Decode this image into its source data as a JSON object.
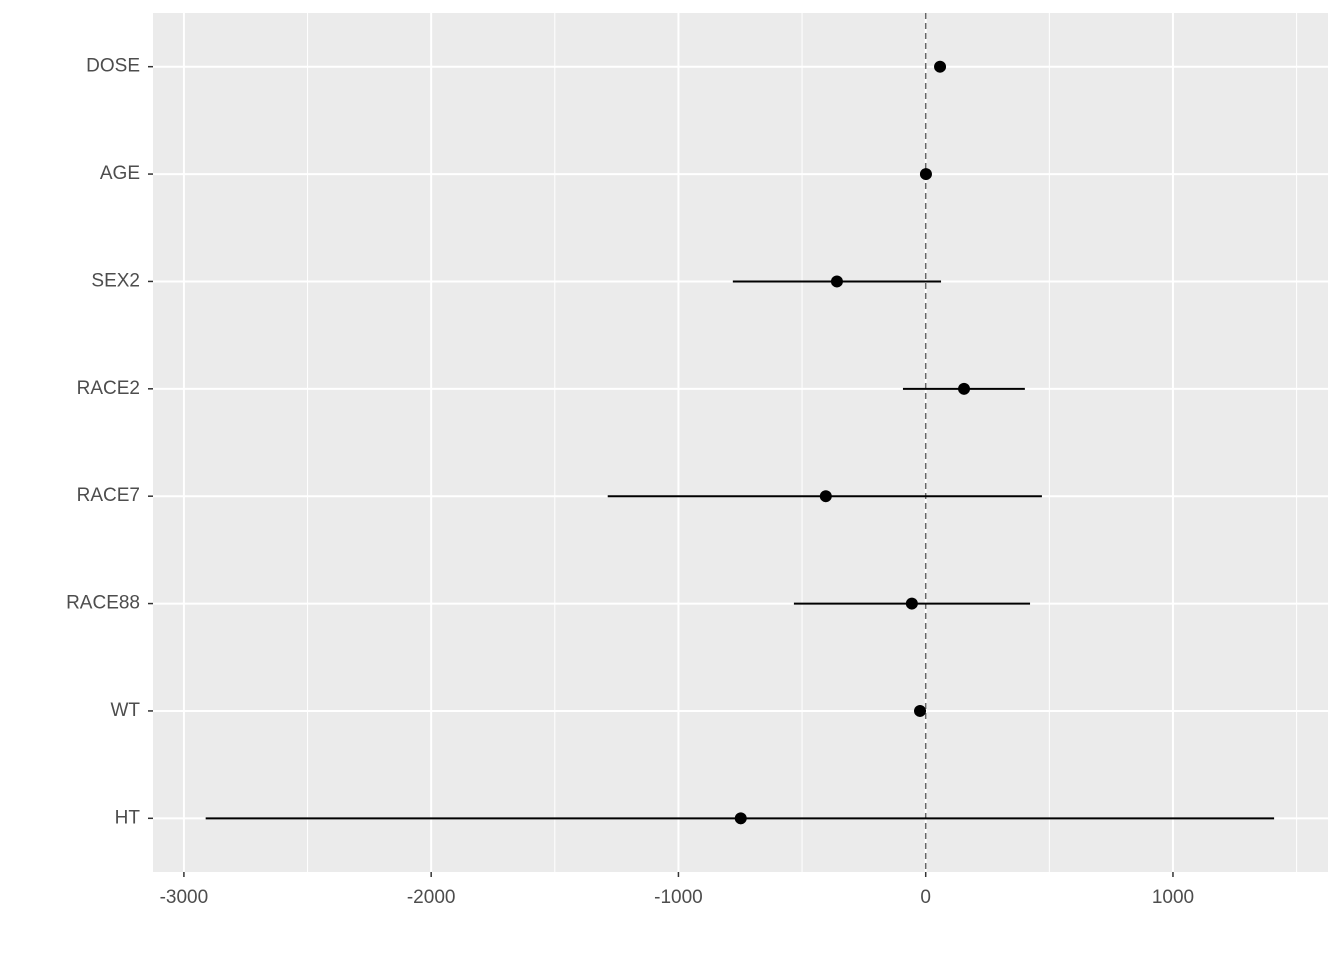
{
  "chart_data": {
    "type": "forest",
    "categories": [
      "DOSE",
      "AGE",
      "SEX2",
      "RACE2",
      "RACE7",
      "RACE88",
      "WT",
      "HT"
    ],
    "series": [
      {
        "color": "#000000",
        "values": [
          58,
          1,
          -359,
          155,
          -404,
          -56,
          -23,
          -748
        ],
        "lower": [
          50,
          -4,
          -780,
          -92,
          -1286,
          -533,
          -30,
          -2912
        ],
        "upper": [
          66,
          6,
          62,
          401,
          470,
          422,
          -16,
          1409
        ]
      }
    ],
    "xlim": [
      -3125,
      1627
    ],
    "xticks": [
      -3000,
      -2000,
      -1000,
      0,
      1000
    ],
    "xminor": [
      -2500,
      -1500,
      -500,
      500,
      1500
    ],
    "reference_line": 0,
    "grid": true,
    "panel_color": "#ebebeb"
  }
}
